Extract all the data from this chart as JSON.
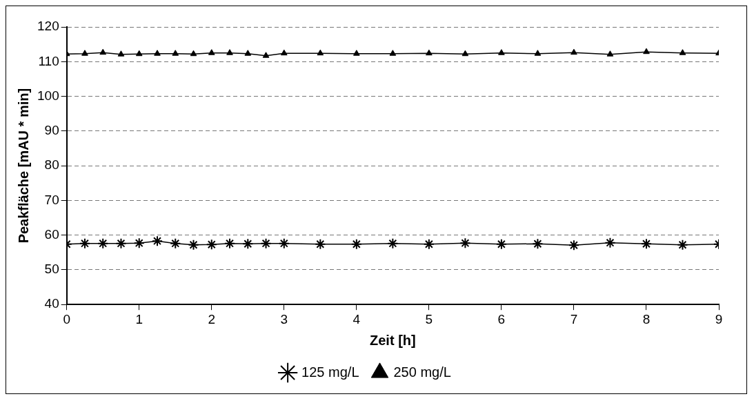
{
  "chart_data": {
    "type": "line",
    "xlabel": "Zeit [h]",
    "ylabel": "Peakfläche [mAU * min]",
    "x": [
      0,
      0.25,
      0.5,
      0.75,
      1,
      1.25,
      1.5,
      1.75,
      2,
      2.25,
      2.5,
      2.75,
      3,
      3.5,
      4,
      4.5,
      5,
      5.5,
      6,
      6.5,
      7,
      7.5,
      8,
      8.5,
      9
    ],
    "series": [
      {
        "name": "125 mg/L",
        "color": "#000000",
        "marker": "cross",
        "values": [
          57.4,
          57.6,
          57.6,
          57.6,
          57.7,
          58.3,
          57.6,
          57.2,
          57.3,
          57.6,
          57.5,
          57.6,
          57.6,
          57.4,
          57.4,
          57.6,
          57.4,
          57.7,
          57.4,
          57.5,
          57.1,
          57.8,
          57.5,
          57.2,
          57.4
        ]
      },
      {
        "name": "250 mg/L",
        "color": "#000000",
        "marker": "triangle",
        "values": [
          112.2,
          112.3,
          112.6,
          112.1,
          112.2,
          112.3,
          112.3,
          112.2,
          112.5,
          112.5,
          112.3,
          111.7,
          112.4,
          112.4,
          112.3,
          112.3,
          112.4,
          112.2,
          112.5,
          112.3,
          112.6,
          112.1,
          112.8,
          112.5,
          112.4
        ]
      }
    ],
    "xlim": [
      0,
      9
    ],
    "xticks": [
      0,
      1,
      2,
      3,
      4,
      5,
      6,
      7,
      8,
      9
    ],
    "ylim": [
      40,
      120
    ],
    "yticks": [
      40,
      50,
      60,
      70,
      80,
      90,
      100,
      110,
      120
    ],
    "grid": "y",
    "legend": "bottom",
    "line_style": "solid"
  }
}
